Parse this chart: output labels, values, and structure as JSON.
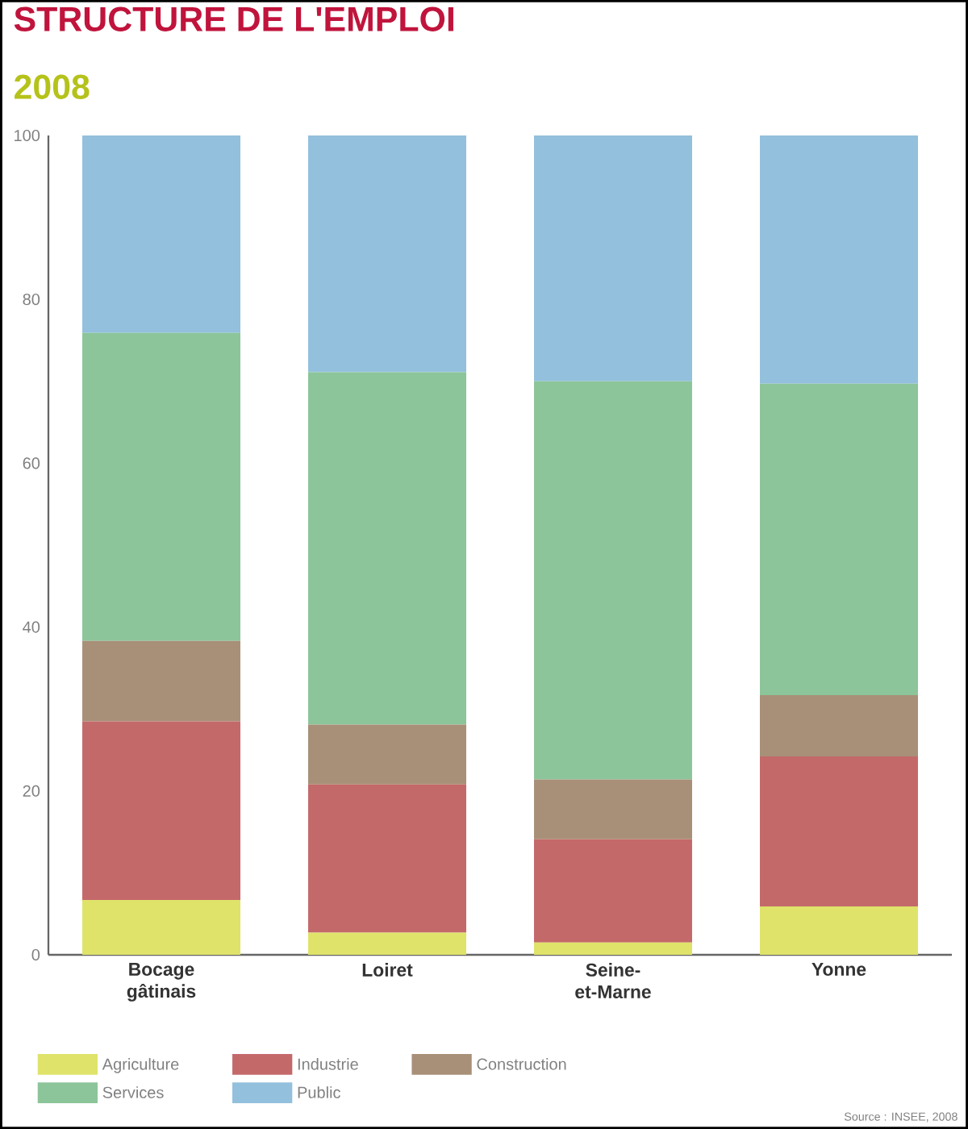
{
  "chart_data": {
    "type": "bar",
    "stacked": true,
    "title": "STRUCTURE DE L'EMPLOI",
    "subtitle": "2008",
    "categories": [
      "Bocage gâtinais",
      "Loiret",
      "Seine-et-Marne",
      "Yonne"
    ],
    "series": [
      {
        "name": "Agriculture",
        "color": "#dfe36a",
        "values": [
          6.7,
          2.7,
          1.5,
          5.9
        ]
      },
      {
        "name": "Industrie",
        "color": "#c4696a",
        "values": [
          21.8,
          18.1,
          12.6,
          18.3
        ]
      },
      {
        "name": "Construction",
        "color": "#a89078",
        "values": [
          9.8,
          7.3,
          7.3,
          7.5
        ]
      },
      {
        "name": "Services",
        "color": "#8cc59a",
        "values": [
          37.6,
          43.0,
          48.6,
          38.0
        ]
      },
      {
        "name": "Public",
        "color": "#93c0dd",
        "values": [
          24.1,
          28.9,
          30.0,
          30.3
        ]
      }
    ],
    "ylim": [
      0,
      100
    ],
    "yticks": [
      0,
      20,
      40,
      60,
      80,
      100
    ],
    "grid": false,
    "legend": "bottom",
    "annotations": [
      "Source : INSEE, 2008"
    ]
  }
}
